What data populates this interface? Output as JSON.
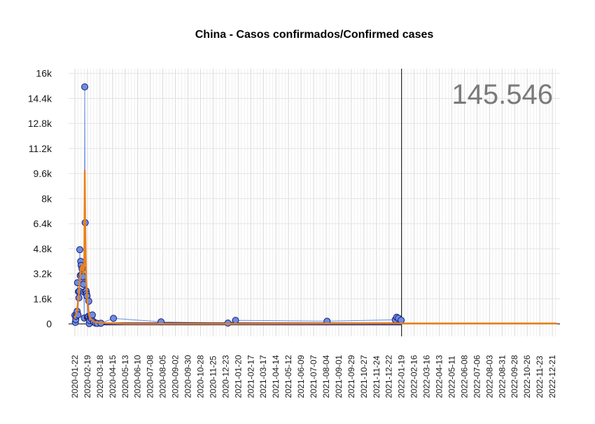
{
  "chart_data": {
    "type": "scatter",
    "title": "China - Casos confirmados/Confirmed cases",
    "total_label": "145.546",
    "xlabel": "",
    "ylabel": "",
    "ylim": [
      -800,
      16300
    ],
    "xlim": [
      "2020-01-08",
      "2023-01-07"
    ],
    "y_ticks": [
      0,
      1600,
      3200,
      4800,
      6400,
      8000,
      9600,
      11200,
      12800,
      14400,
      16000
    ],
    "y_tick_labels": [
      "0",
      "1.6k",
      "3.2k",
      "4.8k",
      "6.4k",
      "8k",
      "9.6k",
      "11.2k",
      "12.8k",
      "14.4k",
      "16k"
    ],
    "x_tick_labels": [
      "2020-01-22",
      "2020-02-19",
      "2020-03-18",
      "2020-04-15",
      "2020-05-13",
      "2020-06-10",
      "2020-07-08",
      "2020-08-05",
      "2020-09-02",
      "2020-09-30",
      "2020-10-28",
      "2020-11-25",
      "2020-12-23",
      "2021-01-20",
      "2021-02-17",
      "2021-03-17",
      "2021-04-14",
      "2021-05-12",
      "2021-06-09",
      "2021-07-07",
      "2021-08-04",
      "2021-09-01",
      "2021-09-29",
      "2021-10-27",
      "2021-11-24",
      "2021-12-22",
      "2022-01-19",
      "2022-02-16",
      "2022-03-16",
      "2022-04-13",
      "2022-05-11",
      "2022-06-08",
      "2022-07-06",
      "2022-08-03",
      "2022-08-31",
      "2022-09-28",
      "2022-10-26",
      "2022-11-23",
      "2022-12-21"
    ],
    "vline_date": "2022-01-19",
    "grid": true,
    "series": [
      {
        "kind": "points",
        "color_fill": "#6b8ee6",
        "color_stroke": "#1c1c6e",
        "points": [
          [
            "2020-01-22",
            548
          ],
          [
            "2020-01-23",
            95
          ],
          [
            "2020-01-24",
            277
          ],
          [
            "2020-01-25",
            486
          ],
          [
            "2020-01-26",
            669
          ],
          [
            "2020-01-27",
            802
          ],
          [
            "2020-01-28",
            2632
          ],
          [
            "2020-01-29",
            578
          ],
          [
            "2020-01-30",
            2054
          ],
          [
            "2020-01-31",
            1661
          ],
          [
            "2020-02-01",
            2089
          ],
          [
            "2020-02-02",
            4739
          ],
          [
            "2020-02-03",
            3086
          ],
          [
            "2020-02-04",
            3991
          ],
          [
            "2020-02-05",
            3733
          ],
          [
            "2020-02-06",
            3147
          ],
          [
            "2020-02-07",
            3523
          ],
          [
            "2020-02-08",
            2704
          ],
          [
            "2020-02-09",
            3015
          ],
          [
            "2020-02-10",
            2525
          ],
          [
            "2020-02-11",
            2032
          ],
          [
            "2020-02-12",
            373
          ],
          [
            "2020-02-13",
            15136
          ],
          [
            "2020-02-14",
            6463
          ],
          [
            "2020-02-15",
            2055
          ],
          [
            "2020-02-16",
            2100
          ],
          [
            "2020-02-17",
            1921
          ],
          [
            "2020-02-18",
            1777
          ],
          [
            "2020-02-19",
            408
          ],
          [
            "2020-02-20",
            458
          ],
          [
            "2020-02-21",
            473
          ],
          [
            "2020-02-22",
            1451
          ],
          [
            "2020-02-23",
            21
          ],
          [
            "2020-02-24",
            219
          ],
          [
            "2020-02-25",
            513
          ],
          [
            "2020-02-26",
            406
          ],
          [
            "2020-02-27",
            433
          ],
          [
            "2020-02-28",
            327
          ],
          [
            "2020-03-01",
            571
          ],
          [
            "2020-03-04",
            125
          ],
          [
            "2020-03-08",
            45
          ],
          [
            "2020-03-12",
            26
          ],
          [
            "2020-03-20",
            41
          ],
          [
            "2020-04-17",
            352
          ],
          [
            "2020-08-01",
            127
          ],
          [
            "2020-12-28",
            51
          ],
          [
            "2021-01-14",
            224
          ],
          [
            "2021-08-06",
            166
          ],
          [
            "2022-01-05",
            263
          ],
          [
            "2022-01-08",
            426
          ],
          [
            "2022-01-12",
            361
          ],
          [
            "2022-01-18",
            232
          ]
        ]
      },
      {
        "kind": "smooth-line",
        "color": "#e8801a",
        "points": [
          [
            "2020-01-22",
            350
          ],
          [
            "2020-01-27",
            900
          ],
          [
            "2020-01-31",
            1900
          ],
          [
            "2020-02-04",
            3500
          ],
          [
            "2020-02-07",
            3800
          ],
          [
            "2020-02-10",
            3200
          ],
          [
            "2020-02-12",
            4000
          ],
          [
            "2020-02-13",
            9800
          ],
          [
            "2020-02-14",
            6400
          ],
          [
            "2020-02-16",
            2800
          ],
          [
            "2020-02-19",
            1300
          ],
          [
            "2020-02-24",
            400
          ],
          [
            "2020-03-05",
            120
          ],
          [
            "2020-04-01",
            40
          ],
          [
            "2020-05-13",
            0
          ],
          [
            "2020-07-08",
            0
          ],
          [
            "2021-01-20",
            0
          ],
          [
            "2022-01-19",
            30
          ],
          [
            "2022-12-31",
            30
          ]
        ]
      }
    ]
  }
}
